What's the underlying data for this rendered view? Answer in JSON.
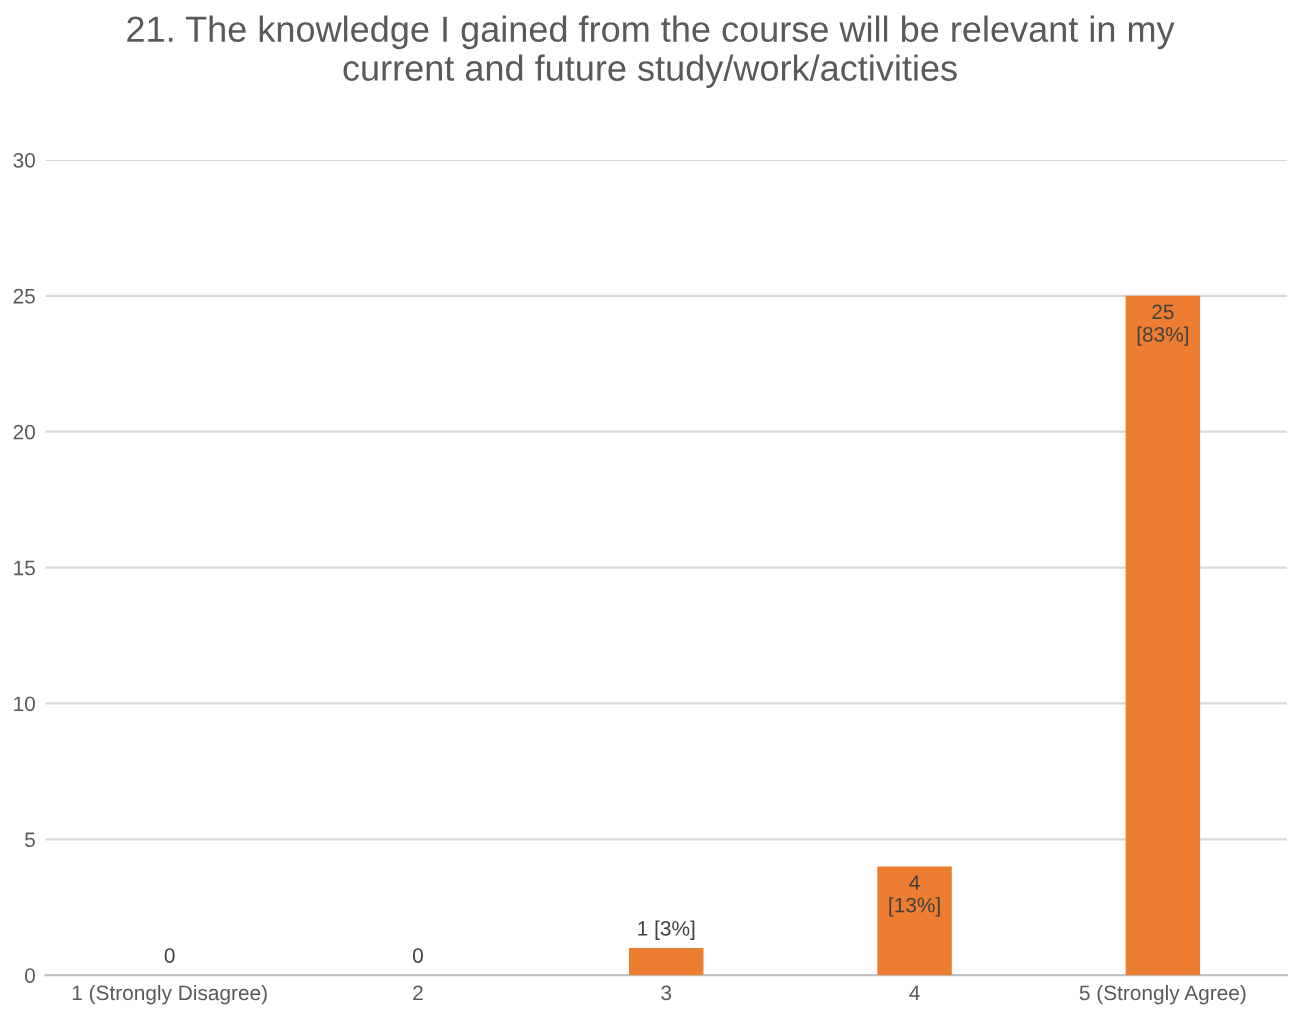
{
  "chart_data": {
    "type": "bar",
    "title": "21. The knowledge I gained from the course will be relevant in my\ncurrent and future study/work/activities",
    "categories": [
      "1 (Strongly Disagree)",
      "2",
      "3",
      "4",
      "5 (Strongly Agree)"
    ],
    "values": [
      0,
      0,
      1,
      4,
      25
    ],
    "color": "#ed7d31",
    "value_labels": [
      "0",
      "0",
      "1 [3%]",
      "4\n[13%]",
      "25\n[83%]"
    ],
    "ylim": [
      0,
      30
    ],
    "yticks": [
      0,
      5,
      10,
      15,
      20,
      25,
      30
    ],
    "grid": "y"
  }
}
